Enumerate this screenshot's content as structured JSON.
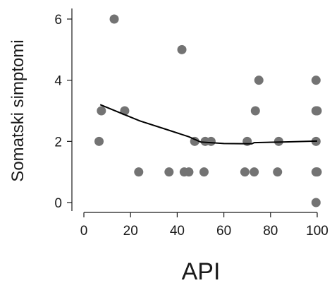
{
  "chart_data": {
    "type": "scatter",
    "title": "",
    "xlabel": "API",
    "ylabel": "Somatski simptomi",
    "xlim": [
      0,
      100
    ],
    "ylim": [
      0,
      6
    ],
    "xticks": [
      0,
      20,
      40,
      60,
      80,
      100
    ],
    "yticks": [
      0,
      2,
      4,
      6
    ],
    "grid": false,
    "colors": {
      "points": "#737373",
      "line": "#000000",
      "axis": "#1a1a1a"
    },
    "points": [
      {
        "x": 6.5,
        "y": 2
      },
      {
        "x": 7.5,
        "y": 3
      },
      {
        "x": 13,
        "y": 6
      },
      {
        "x": 17.5,
        "y": 3
      },
      {
        "x": 23.5,
        "y": 1
      },
      {
        "x": 36.5,
        "y": 1
      },
      {
        "x": 42,
        "y": 5
      },
      {
        "x": 43,
        "y": 1
      },
      {
        "x": 45,
        "y": 1
      },
      {
        "x": 47.5,
        "y": 2
      },
      {
        "x": 51.5,
        "y": 1
      },
      {
        "x": 52,
        "y": 2
      },
      {
        "x": 54.5,
        "y": 2
      },
      {
        "x": 69,
        "y": 1
      },
      {
        "x": 70,
        "y": 2
      },
      {
        "x": 73,
        "y": 1
      },
      {
        "x": 73.5,
        "y": 3
      },
      {
        "x": 75,
        "y": 4
      },
      {
        "x": 83,
        "y": 1
      },
      {
        "x": 83.5,
        "y": 2
      },
      {
        "x": 99.5,
        "y": 4
      },
      {
        "x": 99.5,
        "y": 3
      },
      {
        "x": 100,
        "y": 3
      },
      {
        "x": 99.5,
        "y": 2
      },
      {
        "x": 99.5,
        "y": 1
      },
      {
        "x": 100,
        "y": 1
      },
      {
        "x": 99.5,
        "y": 0
      }
    ],
    "fit_line": [
      {
        "x": 7,
        "y": 3.2
      },
      {
        "x": 15,
        "y": 2.95
      },
      {
        "x": 24,
        "y": 2.67
      },
      {
        "x": 35,
        "y": 2.4
      },
      {
        "x": 45,
        "y": 2.15
      },
      {
        "x": 50,
        "y": 1.98
      },
      {
        "x": 60,
        "y": 1.93
      },
      {
        "x": 72,
        "y": 1.92
      },
      {
        "x": 73,
        "y": 1.96
      },
      {
        "x": 85,
        "y": 1.98
      },
      {
        "x": 100,
        "y": 2.01
      }
    ]
  }
}
